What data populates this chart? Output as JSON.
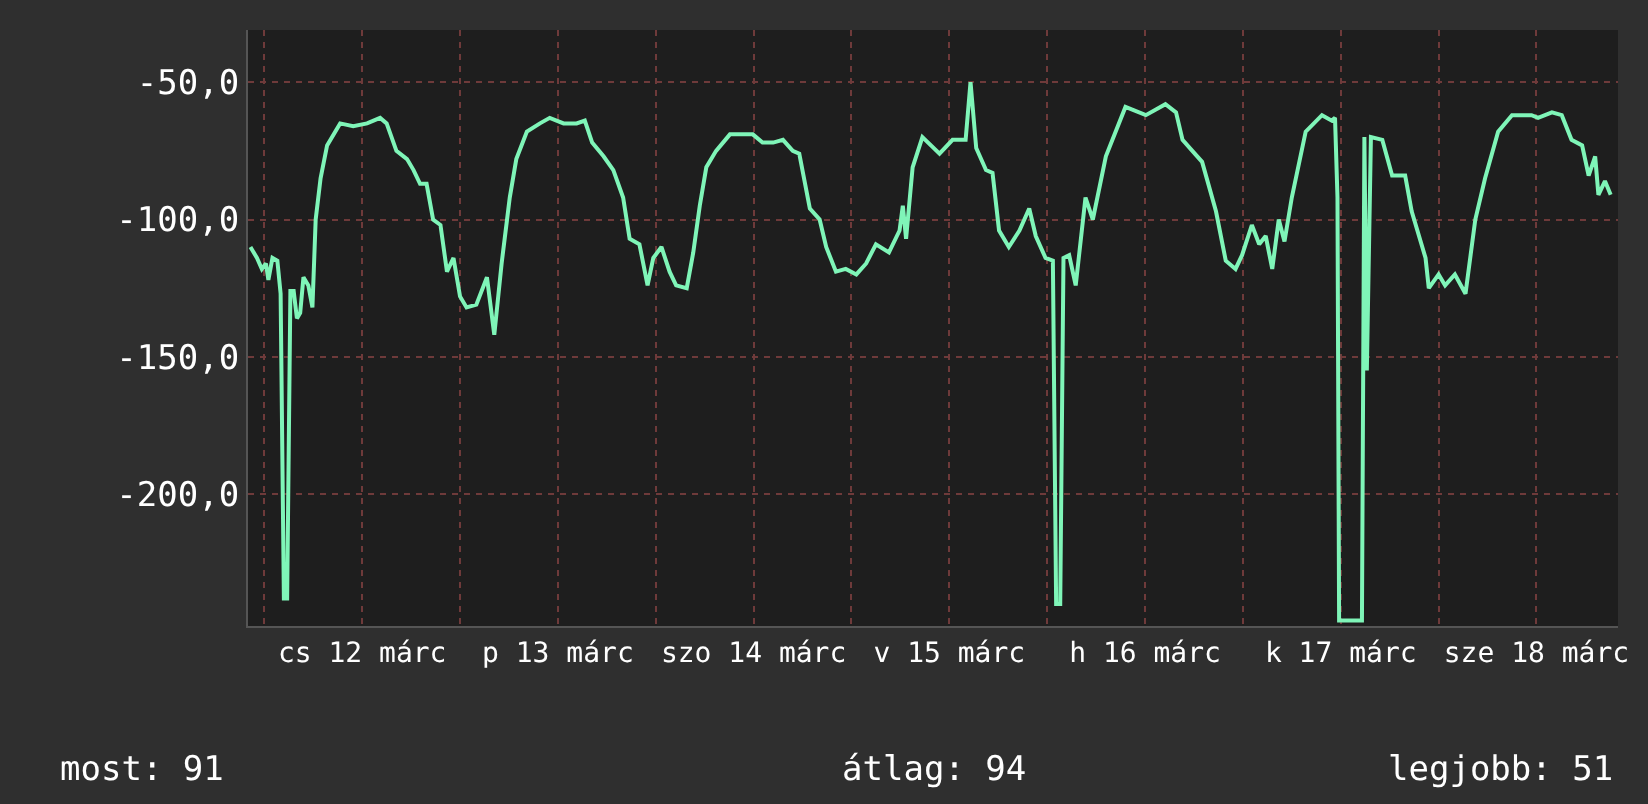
{
  "chart_data": {
    "type": "line",
    "grid": true,
    "marker": "none",
    "line_style": "solid",
    "x": [
      "--03-11T22:18",
      "--03-11T23:06",
      "--03-11T23:42",
      "--03-12T00:12",
      "--03-12T00:30",
      "--03-12T01:00",
      "--03-12T01:36",
      "--03-12T02:00",
      "--03-12T02:24",
      "--03-12T02:48",
      "--03-12T03:12",
      "--03-12T03:36",
      "--03-12T04:00",
      "--03-12T04:24",
      "--03-12T04:48",
      "--03-12T05:24",
      "--03-12T05:54",
      "--03-12T06:18",
      "--03-12T06:54",
      "--03-12T07:42",
      "--03-12T09:18",
      "--03-12T10:54",
      "--03-12T12:36",
      "--03-12T14:12",
      "--03-12T15:00",
      "--03-12T16:12",
      "--03-12T17:30",
      "--03-12T18:18",
      "--03-12T19:06",
      "--03-12T19:54",
      "--03-12T20:42",
      "--03-12T21:36",
      "--03-12T22:24",
      "--03-12T23:12",
      "--03-13T00:00",
      "--03-13T00:48",
      "--03-13T02:00",
      "--03-13T03:18",
      "--03-13T04:12",
      "--03-13T05:06",
      "--03-13T06:06",
      "--03-13T06:54",
      "--03-13T08:12",
      "--03-13T09:48",
      "--03-13T11:00",
      "--03-13T12:42",
      "--03-13T14:18",
      "--03-13T15:18",
      "--03-13T16:12",
      "--03-13T17:36",
      "--03-13T18:48",
      "--03-13T20:00",
      "--03-13T20:48",
      "--03-13T22:00",
      "--03-13T23:00",
      "--03-13T23:42",
      "--03-14T00:42",
      "--03-14T01:42",
      "--03-14T02:30",
      "--03-14T03:48",
      "--03-14T04:36",
      "--03-14T05:24",
      "--03-14T06:12",
      "--03-14T07:24",
      "--03-14T09:06",
      "--03-14T10:42",
      "--03-14T11:54",
      "--03-14T13:06",
      "--03-14T14:24",
      "--03-14T15:36",
      "--03-14T16:48",
      "--03-14T17:36",
      "--03-14T18:54",
      "--03-14T20:06",
      "--03-14T20:54",
      "--03-14T22:06",
      "--03-14T23:18",
      "--03-15T00:36",
      "--03-15T01:48",
      "--03-15T03:00",
      "--03-15T04:36",
      "--03-15T05:54",
      "--03-15T06:18",
      "--03-15T06:42",
      "--03-15T07:30",
      "--03-15T08:42",
      "--03-15T10:48",
      "--03-15T12:24",
      "--03-15T14:00",
      "--03-15T14:36",
      "--03-15T15:18",
      "--03-15T16:30",
      "--03-15T17:18",
      "--03-15T18:06",
      "--03-15T19:18",
      "--03-15T20:36",
      "--03-15T21:48",
      "--03-15T22:36",
      "--03-15T23:48",
      "--03-16T00:42",
      "--03-16T01:06",
      "--03-16T01:36",
      "--03-16T02:00",
      "--03-16T02:42",
      "--03-16T03:30",
      "--03-16T04:42",
      "--03-16T05:36",
      "--03-16T07:12",
      "--03-16T09:36",
      "--03-16T12:06",
      "--03-16T14:30",
      "--03-16T15:48",
      "--03-16T16:36",
      "--03-16T17:48",
      "--03-16T19:00",
      "--03-16T20:42",
      "--03-16T21:54",
      "--03-16T23:06",
      "--03-16T23:54",
      "--03-17T01:06",
      "--03-17T02:00",
      "--03-17T02:48",
      "--03-17T03:36",
      "--03-17T04:24",
      "--03-17T05:06",
      "--03-17T06:00",
      "--03-17T07:42",
      "--03-17T09:42",
      "--03-17T10:54",
      "--03-17T11:18",
      "--03-17T11:36",
      "--03-17T11:48",
      "--03-17T14:36",
      "--03-17T14:54",
      "--03-17T15:12",
      "--03-17T15:42",
      "--03-17T17:06",
      "--03-17T18:18",
      "--03-17T19:54",
      "--03-17T20:42",
      "--03-17T22:24",
      "--03-17T22:48",
      "--03-18T00:00",
      "--03-18T00:48",
      "--03-18T02:00",
      "--03-18T03:18",
      "--03-18T04:30",
      "--03-18T05:42",
      "--03-18T07:18",
      "--03-18T09:00",
      "--03-18T11:24",
      "--03-18T12:12",
      "--03-18T13:54",
      "--03-18T15:06",
      "--03-18T16:18",
      "--03-18T17:36",
      "--03-18T18:24",
      "--03-18T19:12",
      "--03-18T19:36",
      "--03-18T20:24",
      "--03-18T21:06"
    ],
    "series": [
      {
        "color": "#7ff5b8",
        "values": [
          -110,
          -114,
          -118,
          -116,
          -122,
          -114,
          -115,
          -127,
          -238,
          -238,
          -126,
          -126,
          -136,
          -134,
          -121,
          -124,
          -132,
          -100,
          -85,
          -73,
          -65,
          -66,
          -65,
          -63,
          -65,
          -75,
          -78,
          -82,
          -87,
          -87,
          -100,
          -102,
          -119,
          -114,
          -128,
          -132,
          -131,
          -121,
          -142,
          -116,
          -92,
          -78,
          -68,
          -65,
          -63,
          -65,
          -65,
          -64,
          -72,
          -77,
          -82,
          -92,
          -107,
          -109,
          -124,
          -114,
          -110,
          -119,
          -124,
          -125,
          -112,
          -95,
          -81,
          -75,
          -69,
          -69,
          -69,
          -72,
          -72,
          -71,
          -75,
          -76,
          -96,
          -100,
          -110,
          -119,
          -118,
          -120,
          -116,
          -109,
          -112,
          -104,
          -95,
          -107,
          -81,
          -70,
          -76,
          -71,
          -71,
          -50,
          -74,
          -82,
          -83,
          -104,
          -110,
          -104,
          -96,
          -106,
          -114,
          -115,
          -240,
          -240,
          -114,
          -113,
          -124,
          -92,
          -100,
          -77,
          -59,
          -62,
          -58,
          -61,
          -71,
          -75,
          -79,
          -97,
          -115,
          -118,
          -113,
          -102,
          -109,
          -106,
          -118,
          -100,
          -108,
          -92,
          -68,
          -62,
          -64,
          -63,
          -92,
          -246,
          -246,
          -70,
          -155,
          -70,
          -71,
          -84,
          -84,
          -97,
          -114,
          -125,
          -120,
          -124,
          -120,
          -127,
          -100,
          -85,
          -68,
          -62,
          -62,
          -63,
          -61,
          -62,
          -71,
          -73,
          -84,
          -77,
          -91,
          -86,
          -91
        ]
      }
    ],
    "xlim": [
      "--03-11T22:00",
      "--03-18T22:00"
    ],
    "xticks": [
      {
        "value": "--03-12",
        "label": null
      },
      {
        "value": "--03-12T12:00",
        "label": "cs 12 márc"
      },
      {
        "value": "--03-13",
        "label": null
      },
      {
        "value": "--03-13T12:00",
        "label": "p 13 márc"
      },
      {
        "value": "--03-14",
        "label": null
      },
      {
        "value": "--03-14T12:00",
        "label": "szo 14 márc"
      },
      {
        "value": "--03-15",
        "label": null
      },
      {
        "value": "--03-15T12:00",
        "label": "v 15 márc"
      },
      {
        "value": "--03-16",
        "label": null
      },
      {
        "value": "--03-16T12:00",
        "label": "h 16 márc"
      },
      {
        "value": "--03-17",
        "label": null
      },
      {
        "value": "--03-17T12:00",
        "label": "k 17 márc"
      },
      {
        "value": "--03-18",
        "label": null
      },
      {
        "value": "--03-18T12:00",
        "label": "sze 18 márc"
      }
    ],
    "ylim": [
      -248,
      -31
    ],
    "yticks": [
      {
        "value": -50,
        "label": "-50,0"
      },
      {
        "value": -100,
        "label": "-100,0"
      },
      {
        "value": -150,
        "label": "-150,0"
      },
      {
        "value": -200,
        "label": "-200,0"
      }
    ],
    "annotations": [
      "most: 91",
      "átlag: 94",
      "legjobb: 51"
    ]
  }
}
